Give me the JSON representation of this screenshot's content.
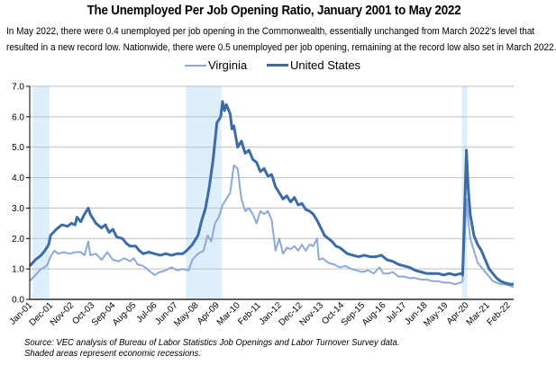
{
  "chart_data": {
    "type": "line",
    "title": "The Unemployed Per Job Opening Ratio, January 2001 to May 2022",
    "subtitle_lines": [
      "In May 2022, there were 0.4 unemployed per job opening in the Commonwealth, essentially unchanged from March 2022's level that",
      "resulted in a new record low. Nationwide, there were  0.5 unemployed per job opening, remaining at the record low also set in March 2022."
    ],
    "xlabel": "",
    "ylabel": "",
    "x_start": "Jan-01",
    "x_end": "May-22",
    "x_start_year": 2001,
    "x_start_month": 1,
    "x_end_month_index": 256,
    "ylim": [
      0,
      7
    ],
    "yticks": [
      "0.0",
      "1.0",
      "2.0",
      "3.0",
      "4.0",
      "5.0",
      "6.0",
      "7.0"
    ],
    "xticks": [
      "Jan-01",
      "Dec-01",
      "Nov-02",
      "Oct-03",
      "Sep-04",
      "Aug-05",
      "Jul-06",
      "Jun-07",
      "May-08",
      "Apr-09",
      "Mar-10",
      "Feb-11",
      "Jan-12",
      "Dec-12",
      "Nov-13",
      "Oct-14",
      "Sep-15",
      "Aug-16",
      "Jul-17",
      "Jun-18",
      "May-19",
      "Apr-20",
      "Mar-21",
      "Feb-22"
    ],
    "xtick_step_months": 11,
    "grid": true,
    "legend_position": "top-center",
    "recessions": [
      {
        "start": "Mar-01",
        "end": "Nov-01"
      },
      {
        "start": "Dec-07",
        "end": "Jun-09"
      },
      {
        "start": "Feb-20",
        "end": "Apr-20"
      }
    ],
    "series": [
      {
        "name": "Virginia",
        "color": "#8EA9D3",
        "points": [
          [
            "Jan-01",
            0.6
          ],
          [
            "Apr-01",
            0.8
          ],
          [
            "Jul-01",
            1.0
          ],
          [
            "Oct-01",
            1.1
          ],
          [
            "Dec-01",
            1.4
          ],
          [
            "Feb-02",
            1.6
          ],
          [
            "Apr-02",
            1.5
          ],
          [
            "Jul-02",
            1.55
          ],
          [
            "Oct-02",
            1.5
          ],
          [
            "Jan-03",
            1.55
          ],
          [
            "Apr-03",
            1.55
          ],
          [
            "Jun-03",
            1.45
          ],
          [
            "Aug-03",
            1.9
          ],
          [
            "Sep-03",
            1.45
          ],
          [
            "Dec-03",
            1.5
          ],
          [
            "Mar-04",
            1.3
          ],
          [
            "Jun-04",
            1.55
          ],
          [
            "Sep-04",
            1.3
          ],
          [
            "Dec-04",
            1.25
          ],
          [
            "Mar-05",
            1.35
          ],
          [
            "Jun-05",
            1.25
          ],
          [
            "Aug-05",
            1.35
          ],
          [
            "Oct-05",
            1.15
          ],
          [
            "Jan-06",
            1.1
          ],
          [
            "Apr-06",
            0.95
          ],
          [
            "Jul-06",
            0.8
          ],
          [
            "Oct-06",
            0.9
          ],
          [
            "Jan-07",
            0.95
          ],
          [
            "Apr-07",
            1.05
          ],
          [
            "Jul-07",
            0.95
          ],
          [
            "Oct-07",
            1.0
          ],
          [
            "Jan-08",
            0.95
          ],
          [
            "Mar-08",
            1.3
          ],
          [
            "Jun-08",
            1.5
          ],
          [
            "Sep-08",
            1.6
          ],
          [
            "Nov-08",
            2.1
          ],
          [
            "Jan-09",
            1.9
          ],
          [
            "Mar-09",
            2.5
          ],
          [
            "May-09",
            2.7
          ],
          [
            "Jul-09",
            3.1
          ],
          [
            "Sep-09",
            3.3
          ],
          [
            "Nov-09",
            3.5
          ],
          [
            "Jan-10",
            4.4
          ],
          [
            "Mar-10",
            4.3
          ],
          [
            "May-10",
            3.3
          ],
          [
            "Jul-10",
            2.9
          ],
          [
            "Sep-10",
            3.0
          ],
          [
            "Nov-10",
            2.8
          ],
          [
            "Jan-11",
            2.5
          ],
          [
            "Mar-11",
            2.9
          ],
          [
            "May-11",
            2.8
          ],
          [
            "Jul-11",
            2.9
          ],
          [
            "Sep-11",
            2.6
          ],
          [
            "Nov-11",
            1.6
          ],
          [
            "Jan-12",
            2.0
          ],
          [
            "Mar-12",
            1.5
          ],
          [
            "May-12",
            1.7
          ],
          [
            "Jul-12",
            1.65
          ],
          [
            "Sep-12",
            1.75
          ],
          [
            "Nov-12",
            1.6
          ],
          [
            "Jan-13",
            1.8
          ],
          [
            "Mar-13",
            1.6
          ],
          [
            "May-13",
            1.8
          ],
          [
            "Jul-13",
            1.75
          ],
          [
            "Sep-13",
            2.0
          ],
          [
            "Oct-13",
            1.3
          ],
          [
            "Dec-13",
            1.35
          ],
          [
            "Mar-14",
            1.2
          ],
          [
            "Jun-14",
            1.15
          ],
          [
            "Sep-14",
            1.05
          ],
          [
            "Dec-14",
            1.1
          ],
          [
            "Mar-15",
            1.0
          ],
          [
            "Jun-15",
            0.95
          ],
          [
            "Sep-15",
            0.9
          ],
          [
            "Dec-15",
            0.95
          ],
          [
            "Mar-16",
            0.85
          ],
          [
            "Jun-16",
            1.05
          ],
          [
            "Aug-16",
            0.85
          ],
          [
            "Nov-16",
            0.85
          ],
          [
            "Jan-17",
            0.9
          ],
          [
            "Apr-17",
            0.75
          ],
          [
            "Jul-17",
            0.75
          ],
          [
            "Oct-17",
            0.7
          ],
          [
            "Jan-18",
            0.7
          ],
          [
            "Apr-18",
            0.65
          ],
          [
            "Jul-18",
            0.65
          ],
          [
            "Oct-18",
            0.6
          ],
          [
            "Jan-19",
            0.6
          ],
          [
            "Apr-19",
            0.55
          ],
          [
            "Jul-19",
            0.55
          ],
          [
            "Oct-19",
            0.5
          ],
          [
            "Jan-20",
            0.55
          ],
          [
            "Feb-20",
            0.6
          ],
          [
            "Apr-20",
            3.3
          ],
          [
            "May-20",
            2.6
          ],
          [
            "Jun-20",
            2.0
          ],
          [
            "Aug-20",
            1.6
          ],
          [
            "Oct-20",
            1.2
          ],
          [
            "Dec-20",
            1.05
          ],
          [
            "Feb-21",
            0.9
          ],
          [
            "Apr-21",
            0.75
          ],
          [
            "Jun-21",
            0.6
          ],
          [
            "Aug-21",
            0.55
          ],
          [
            "Oct-21",
            0.5
          ],
          [
            "Dec-21",
            0.5
          ],
          [
            "Mar-22",
            0.45
          ],
          [
            "May-22",
            0.4
          ]
        ]
      },
      {
        "name": "United States",
        "color": "#3D6BA5",
        "points": [
          [
            "Jan-01",
            1.1
          ],
          [
            "Apr-01",
            1.3
          ],
          [
            "Jul-01",
            1.45
          ],
          [
            "Sep-01",
            1.6
          ],
          [
            "Nov-01",
            1.8
          ],
          [
            "Dec-01",
            2.1
          ],
          [
            "Mar-02",
            2.3
          ],
          [
            "Jun-02",
            2.45
          ],
          [
            "Sep-02",
            2.4
          ],
          [
            "Nov-02",
            2.5
          ],
          [
            "Jan-03",
            2.45
          ],
          [
            "Feb-03",
            2.7
          ],
          [
            "Apr-03",
            2.55
          ],
          [
            "Jun-03",
            2.8
          ],
          [
            "Aug-03",
            3.0
          ],
          [
            "Sep-03",
            2.8
          ],
          [
            "Dec-03",
            2.5
          ],
          [
            "Mar-04",
            2.35
          ],
          [
            "May-04",
            2.45
          ],
          [
            "Jul-04",
            2.2
          ],
          [
            "Sep-04",
            2.3
          ],
          [
            "Nov-04",
            2.05
          ],
          [
            "Feb-05",
            2.0
          ],
          [
            "Apr-05",
            1.85
          ],
          [
            "Jun-05",
            1.75
          ],
          [
            "Sep-05",
            1.75
          ],
          [
            "Nov-05",
            1.6
          ],
          [
            "Jan-06",
            1.5
          ],
          [
            "Apr-06",
            1.55
          ],
          [
            "Jul-06",
            1.5
          ],
          [
            "Oct-06",
            1.45
          ],
          [
            "Jan-07",
            1.5
          ],
          [
            "Apr-07",
            1.45
          ],
          [
            "Jul-07",
            1.5
          ],
          [
            "Oct-07",
            1.5
          ],
          [
            "Dec-07",
            1.6
          ],
          [
            "Mar-08",
            1.8
          ],
          [
            "Jun-08",
            2.1
          ],
          [
            "Aug-08",
            2.6
          ],
          [
            "Oct-08",
            3.0
          ],
          [
            "Dec-08",
            3.7
          ],
          [
            "Feb-09",
            4.6
          ],
          [
            "Apr-09",
            5.8
          ],
          [
            "Jun-09",
            6.0
          ],
          [
            "Jul-09",
            6.5
          ],
          [
            "Aug-09",
            6.2
          ],
          [
            "Sep-09",
            6.4
          ],
          [
            "Nov-09",
            6.1
          ],
          [
            "Dec-09",
            5.6
          ],
          [
            "Jan-10",
            5.7
          ],
          [
            "Mar-10",
            5.0
          ],
          [
            "May-10",
            5.2
          ],
          [
            "Jul-10",
            4.8
          ],
          [
            "Sep-10",
            4.9
          ],
          [
            "Nov-10",
            4.6
          ],
          [
            "Jan-11",
            4.5
          ],
          [
            "Mar-11",
            4.2
          ],
          [
            "May-11",
            4.3
          ],
          [
            "Jul-11",
            4.05
          ],
          [
            "Sep-11",
            4.1
          ],
          [
            "Nov-11",
            3.7
          ],
          [
            "Jan-12",
            3.5
          ],
          [
            "Mar-12",
            3.3
          ],
          [
            "May-12",
            3.4
          ],
          [
            "Jul-12",
            3.2
          ],
          [
            "Sep-12",
            3.35
          ],
          [
            "Nov-12",
            3.1
          ],
          [
            "Jan-13",
            3.15
          ],
          [
            "Mar-13",
            2.95
          ],
          [
            "May-13",
            2.9
          ],
          [
            "Jul-13",
            2.8
          ],
          [
            "Sep-13",
            2.6
          ],
          [
            "Nov-13",
            2.35
          ],
          [
            "Jan-14",
            2.1
          ],
          [
            "Mar-14",
            2.0
          ],
          [
            "May-14",
            1.9
          ],
          [
            "Jul-14",
            1.75
          ],
          [
            "Sep-14",
            1.7
          ],
          [
            "Nov-14",
            1.6
          ],
          [
            "Jan-15",
            1.5
          ],
          [
            "Apr-15",
            1.45
          ],
          [
            "Jul-15",
            1.4
          ],
          [
            "Oct-15",
            1.45
          ],
          [
            "Jan-16",
            1.4
          ],
          [
            "Apr-16",
            1.4
          ],
          [
            "Jul-16",
            1.45
          ],
          [
            "Oct-16",
            1.3
          ],
          [
            "Jan-17",
            1.25
          ],
          [
            "Apr-17",
            1.15
          ],
          [
            "Jul-17",
            1.1
          ],
          [
            "Oct-17",
            1.05
          ],
          [
            "Jan-18",
            0.95
          ],
          [
            "Apr-18",
            0.9
          ],
          [
            "Jul-18",
            0.85
          ],
          [
            "Oct-18",
            0.85
          ],
          [
            "Jan-19",
            0.85
          ],
          [
            "Apr-19",
            0.8
          ],
          [
            "Jul-19",
            0.85
          ],
          [
            "Oct-19",
            0.8
          ],
          [
            "Jan-20",
            0.85
          ],
          [
            "Feb-20",
            0.8
          ],
          [
            "Apr-20",
            4.9
          ],
          [
            "May-20",
            3.6
          ],
          [
            "Jun-20",
            2.8
          ],
          [
            "Aug-20",
            2.1
          ],
          [
            "Oct-20",
            1.8
          ],
          [
            "Dec-20",
            1.6
          ],
          [
            "Feb-21",
            1.3
          ],
          [
            "Apr-21",
            1.0
          ],
          [
            "Jun-21",
            0.85
          ],
          [
            "Aug-21",
            0.7
          ],
          [
            "Oct-21",
            0.6
          ],
          [
            "Dec-21",
            0.55
          ],
          [
            "Mar-22",
            0.5
          ],
          [
            "May-22",
            0.5
          ]
        ]
      }
    ],
    "annotations": [],
    "source_note": "Source: VEC analysis of Bureau of Labor Statistics Job Openings and Labor Turnover Survey data.",
    "shading_note": "Shaded areas represent economic recessions.",
    "recession_color": "#DDEFFC",
    "grid_color": "#BFBFBF"
  }
}
